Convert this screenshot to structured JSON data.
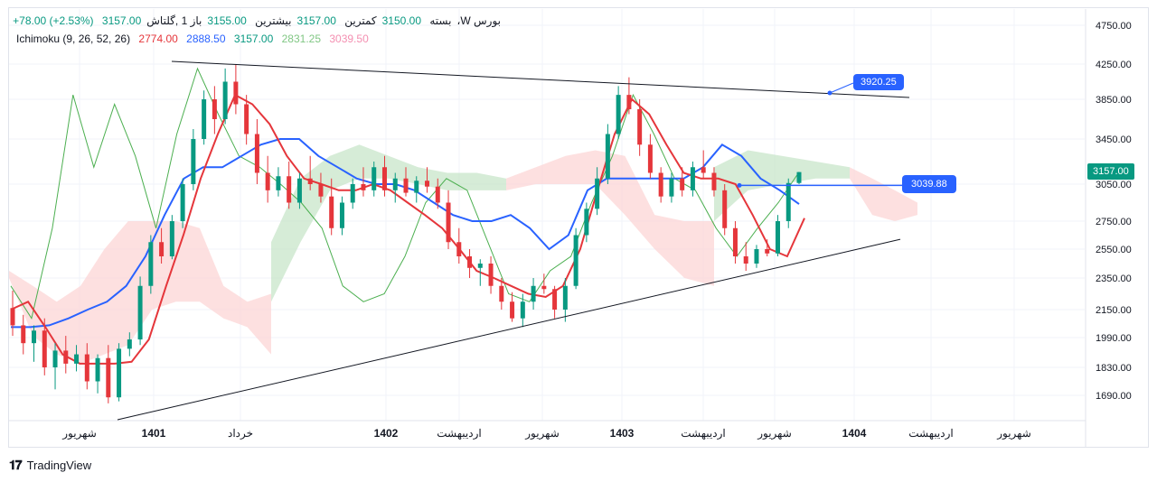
{
  "header": {
    "symbol": "1 ,گلتاش،W بورس",
    "open_label": "باز",
    "open_value": "3155.00",
    "high_label": "بیشترین",
    "high_value": "3157.00",
    "low_label": "کمترین",
    "low_value": "3150.00",
    "close_label": "بسته",
    "close_value": "3157.00",
    "change": "+78.00 (+2.53%)"
  },
  "indicator": {
    "name": "Ichimoku (9, 26, 52, 26)",
    "values": [
      "2774.00",
      "2888.50",
      "3157.00",
      "2831.25",
      "3039.50"
    ],
    "colors": [
      "#e5363b",
      "#2962ff",
      "#089981",
      "#81c784",
      "#f48fb1"
    ]
  },
  "price_labels": {
    "upper_line": "3920.25",
    "horizontal_line": "3039.88",
    "current_price": "3157.00"
  },
  "footer": {
    "brand": "TradingView"
  },
  "chart_data": {
    "type": "candlestick",
    "y_ticks": [
      "4750.00",
      "4250.00",
      "3850.00",
      "3450.00",
      "3050.00",
      "2750.00",
      "2550.00",
      "2350.00",
      "2150.00",
      "1990.00",
      "1830.00",
      "1690.00"
    ],
    "x_ticks": [
      "شهریور",
      "1401",
      "خرداد",
      "1402",
      "اردیبهشت",
      "شهریور",
      "1403",
      "اردیبهشت",
      "شهریور",
      "1404",
      "اردیبهشت",
      "شهریور"
    ],
    "grid": true,
    "colors": {
      "up": "#089981",
      "down": "#e5363b",
      "tenkan": "#e5363b",
      "kijun": "#2962ff",
      "chikou": "#4caf50",
      "cloud_bull": "#c8e6c9",
      "cloud_bear": "#fcd5d5",
      "trendline": "#131722",
      "hline": "#2962ff"
    },
    "candles": [
      {
        "o": 2160,
        "h": 2270,
        "l": 2000,
        "c": 2060
      },
      {
        "o": 2060,
        "h": 2120,
        "l": 1900,
        "c": 1960
      },
      {
        "o": 1960,
        "h": 2060,
        "l": 1860,
        "c": 2030
      },
      {
        "o": 2030,
        "h": 2100,
        "l": 1790,
        "c": 1830
      },
      {
        "o": 1830,
        "h": 1960,
        "l": 1720,
        "c": 1920
      },
      {
        "o": 1920,
        "h": 2000,
        "l": 1800,
        "c": 1850
      },
      {
        "o": 1850,
        "h": 1950,
        "l": 1810,
        "c": 1900
      },
      {
        "o": 1900,
        "h": 1960,
        "l": 1720,
        "c": 1760
      },
      {
        "o": 1760,
        "h": 1900,
        "l": 1700,
        "c": 1880
      },
      {
        "o": 1880,
        "h": 1950,
        "l": 1650,
        "c": 1680
      },
      {
        "o": 1680,
        "h": 1960,
        "l": 1660,
        "c": 1930
      },
      {
        "o": 1930,
        "h": 2020,
        "l": 1890,
        "c": 1980
      },
      {
        "o": 1980,
        "h": 2360,
        "l": 1950,
        "c": 2300
      },
      {
        "o": 2300,
        "h": 2650,
        "l": 2250,
        "c": 2600
      },
      {
        "o": 2600,
        "h": 2700,
        "l": 2450,
        "c": 2500
      },
      {
        "o": 2500,
        "h": 2800,
        "l": 2480,
        "c": 2750
      },
      {
        "o": 2750,
        "h": 3100,
        "l": 2700,
        "c": 3050
      },
      {
        "o": 3050,
        "h": 3550,
        "l": 3000,
        "c": 3450
      },
      {
        "o": 3450,
        "h": 3950,
        "l": 3400,
        "c": 3850
      },
      {
        "o": 3850,
        "h": 4000,
        "l": 3500,
        "c": 3650
      },
      {
        "o": 3650,
        "h": 4200,
        "l": 3600,
        "c": 4050
      },
      {
        "o": 4050,
        "h": 4250,
        "l": 3700,
        "c": 3800
      },
      {
        "o": 3800,
        "h": 3900,
        "l": 3400,
        "c": 3500
      },
      {
        "o": 3500,
        "h": 3650,
        "l": 3050,
        "c": 3150
      },
      {
        "o": 3150,
        "h": 3300,
        "l": 2900,
        "c": 3000
      },
      {
        "o": 3000,
        "h": 3200,
        "l": 2950,
        "c": 3120
      },
      {
        "o": 3120,
        "h": 3250,
        "l": 2850,
        "c": 2900
      },
      {
        "o": 2900,
        "h": 3150,
        "l": 2850,
        "c": 3100
      },
      {
        "o": 3100,
        "h": 3300,
        "l": 3000,
        "c": 3050
      },
      {
        "o": 3050,
        "h": 3150,
        "l": 2900,
        "c": 2950
      },
      {
        "o": 2950,
        "h": 3100,
        "l": 2650,
        "c": 2700
      },
      {
        "o": 2700,
        "h": 2950,
        "l": 2650,
        "c": 2900
      },
      {
        "o": 2900,
        "h": 3100,
        "l": 2850,
        "c": 3050
      },
      {
        "o": 3050,
        "h": 3200,
        "l": 2950,
        "c": 3000
      },
      {
        "o": 3000,
        "h": 3250,
        "l": 2950,
        "c": 3200
      },
      {
        "o": 3200,
        "h": 3300,
        "l": 2950,
        "c": 3000
      },
      {
        "o": 3000,
        "h": 3150,
        "l": 2900,
        "c": 3100
      },
      {
        "o": 3100,
        "h": 3200,
        "l": 2950,
        "c": 2980
      },
      {
        "o": 2980,
        "h": 3120,
        "l": 2900,
        "c": 3080
      },
      {
        "o": 3080,
        "h": 3200,
        "l": 2980,
        "c": 3030
      },
      {
        "o": 3030,
        "h": 3100,
        "l": 2850,
        "c": 2900
      },
      {
        "o": 2900,
        "h": 3000,
        "l": 2550,
        "c": 2600
      },
      {
        "o": 2600,
        "h": 2700,
        "l": 2450,
        "c": 2500
      },
      {
        "o": 2500,
        "h": 2550,
        "l": 2350,
        "c": 2420
      },
      {
        "o": 2420,
        "h": 2480,
        "l": 2300,
        "c": 2450
      },
      {
        "o": 2450,
        "h": 2500,
        "l": 2250,
        "c": 2300
      },
      {
        "o": 2300,
        "h": 2350,
        "l": 2150,
        "c": 2200
      },
      {
        "o": 2200,
        "h": 2260,
        "l": 2080,
        "c": 2100
      },
      {
        "o": 2100,
        "h": 2250,
        "l": 2050,
        "c": 2200
      },
      {
        "o": 2200,
        "h": 2350,
        "l": 2150,
        "c": 2300
      },
      {
        "o": 2300,
        "h": 2380,
        "l": 2250,
        "c": 2280
      },
      {
        "o": 2280,
        "h": 2300,
        "l": 2100,
        "c": 2150
      },
      {
        "o": 2150,
        "h": 2350,
        "l": 2080,
        "c": 2300
      },
      {
        "o": 2300,
        "h": 2700,
        "l": 2280,
        "c": 2650
      },
      {
        "o": 2650,
        "h": 2900,
        "l": 2600,
        "c": 2850
      },
      {
        "o": 2850,
        "h": 3200,
        "l": 2800,
        "c": 3100
      },
      {
        "o": 3100,
        "h": 3600,
        "l": 3050,
        "c": 3500
      },
      {
        "o": 3500,
        "h": 4000,
        "l": 3450,
        "c": 3900
      },
      {
        "o": 3900,
        "h": 4100,
        "l": 3700,
        "c": 3750
      },
      {
        "o": 3750,
        "h": 3850,
        "l": 3300,
        "c": 3400
      },
      {
        "o": 3400,
        "h": 3500,
        "l": 3100,
        "c": 3150
      },
      {
        "o": 3150,
        "h": 3200,
        "l": 2900,
        "c": 2950
      },
      {
        "o": 2950,
        "h": 3150,
        "l": 2900,
        "c": 3100
      },
      {
        "o": 3100,
        "h": 3200,
        "l": 2950,
        "c": 3000
      },
      {
        "o": 3000,
        "h": 3250,
        "l": 2950,
        "c": 3200
      },
      {
        "o": 3200,
        "h": 3350,
        "l": 3100,
        "c": 3150
      },
      {
        "o": 3150,
        "h": 3200,
        "l": 2950,
        "c": 3000
      },
      {
        "o": 3000,
        "h": 3050,
        "l": 2650,
        "c": 2700
      },
      {
        "o": 2700,
        "h": 2750,
        "l": 2450,
        "c": 2500
      },
      {
        "o": 2500,
        "h": 2600,
        "l": 2400,
        "c": 2450
      },
      {
        "o": 2450,
        "h": 2580,
        "l": 2420,
        "c": 2550
      },
      {
        "o": 2550,
        "h": 2620,
        "l": 2500,
        "c": 2520
      },
      {
        "o": 2520,
        "h": 2800,
        "l": 2500,
        "c": 2750
      },
      {
        "o": 2750,
        "h": 3100,
        "l": 2700,
        "c": 3060
      },
      {
        "o": 3060,
        "h": 3157,
        "l": 3050,
        "c": 3157
      }
    ],
    "tenkan": [
      2150,
      2200,
      2050,
      1900,
      1850,
      1850,
      1850,
      1860,
      1980,
      2300,
      2650,
      3100,
      3500,
      3900,
      3800,
      3600,
      3300,
      3100,
      3050,
      3000,
      3000,
      3050,
      3000,
      2900,
      2800,
      2700,
      2550,
      2400,
      2350,
      2300,
      2250,
      2230,
      2300,
      2550,
      3000,
      3500,
      3850,
      3700,
      3400,
      3150,
      3100,
      3100,
      3050,
      2800,
      2550,
      2500,
      2774
    ],
    "kijun": [
      2050,
      2050,
      2060,
      2100,
      2150,
      2200,
      2300,
      2500,
      2800,
      3100,
      3200,
      3200,
      3300,
      3400,
      3450,
      3450,
      3300,
      3200,
      3100,
      3050,
      3050,
      3000,
      2900,
      2800,
      2750,
      2750,
      2800,
      2700,
      2550,
      2650,
      3000,
      3100,
      3100,
      3100,
      3100,
      3100,
      3200,
      3400,
      3300,
      3100,
      3000,
      2888.5
    ],
    "chikou": [
      2300,
      2100,
      2700,
      3900,
      3200,
      3800,
      3300,
      2700,
      3500,
      4200,
      3700,
      3300,
      3200,
      3050,
      2900,
      2700,
      2300,
      2200,
      2250,
      2500,
      2900,
      3100,
      3000,
      2600,
      2250,
      2200,
      2400,
      2500,
      2900,
      3300,
      3900,
      3500,
      3100,
      3000,
      2700,
      2500,
      2700,
      2900,
      3157
    ],
    "trend_upper": {
      "x1": "خرداد",
      "v1": 4250,
      "x2": "اردیبهشت",
      "v2": 3870
    },
    "trend_lower": {
      "x1": "شهریور",
      "v1": 1640,
      "x2": "اردیبهشت",
      "v2": 2620
    },
    "hline_value": 3039.88,
    "upper_line_value": 3920.25
  }
}
